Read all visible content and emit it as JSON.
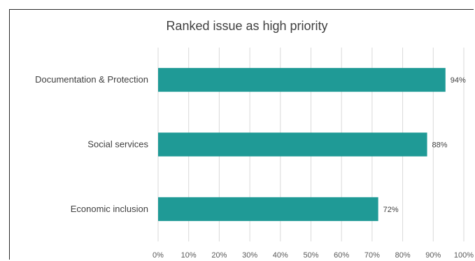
{
  "chart_data": {
    "type": "bar",
    "orientation": "horizontal",
    "title": "Ranked issue as high priority",
    "categories": [
      "Documentation & Protection",
      "Social services",
      "Economic inclusion"
    ],
    "values": [
      0.94,
      0.88,
      0.72
    ],
    "data_labels": [
      "94%",
      "88%",
      "72%"
    ],
    "xlim": [
      0,
      1
    ],
    "x_ticks": [
      "0%",
      "10%",
      "20%",
      "30%",
      "40%",
      "50%",
      "60%",
      "70%",
      "80%",
      "90%",
      "100%"
    ],
    "bar_color": "#1f9a96",
    "grid": true,
    "legend": "none"
  }
}
